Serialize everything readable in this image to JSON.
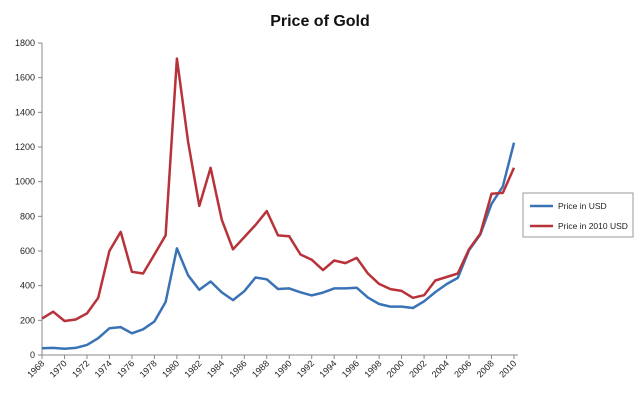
{
  "chart_data": {
    "type": "line",
    "title": "Price of Gold",
    "xlabel": "",
    "ylabel": "",
    "ylim": [
      0,
      1800
    ],
    "yticks": [
      0,
      200,
      400,
      600,
      800,
      1000,
      1200,
      1400,
      1600,
      1800
    ],
    "x": [
      1968,
      1969,
      1970,
      1971,
      1972,
      1973,
      1974,
      1975,
      1976,
      1977,
      1978,
      1979,
      1980,
      1981,
      1982,
      1983,
      1984,
      1985,
      1986,
      1987,
      1988,
      1989,
      1990,
      1991,
      1992,
      1993,
      1994,
      1995,
      1996,
      1997,
      1998,
      1999,
      2000,
      2001,
      2002,
      2003,
      2004,
      2005,
      2006,
      2007,
      2008,
      2009,
      2010
    ],
    "xticks": [
      "1968",
      "1970",
      "1972",
      "1974",
      "1976",
      "1978",
      "1980",
      "1982",
      "1984",
      "1986",
      "1988",
      "1990",
      "1992",
      "1994",
      "1996",
      "1998",
      "2000",
      "2002",
      "2004",
      "2006",
      "2008",
      "2010"
    ],
    "series": [
      {
        "name": "Price in USD",
        "color": "#3a73b5",
        "values": [
          39,
          41,
          36,
          41,
          58,
          97,
          154,
          161,
          125,
          148,
          193,
          306,
          615,
          460,
          376,
          424,
          361,
          317,
          368,
          447,
          437,
          381,
          384,
          362,
          344,
          360,
          384,
          384,
          388,
          331,
          294,
          279,
          279,
          271,
          310,
          363,
          409,
          445,
          604,
          695,
          872,
          972,
          1225
        ]
      },
      {
        "name": "Price in 2010 USD",
        "color": "#b8323a",
        "values": [
          210,
          250,
          196,
          205,
          240,
          330,
          600,
          710,
          480,
          470,
          580,
          690,
          1710,
          1230,
          860,
          1080,
          780,
          610,
          680,
          750,
          830,
          690,
          685,
          580,
          550,
          490,
          545,
          530,
          560,
          470,
          410,
          380,
          370,
          330,
          345,
          430,
          450,
          470,
          610,
          700,
          930,
          935,
          1080
        ]
      }
    ],
    "legend": {
      "position": "right"
    }
  }
}
